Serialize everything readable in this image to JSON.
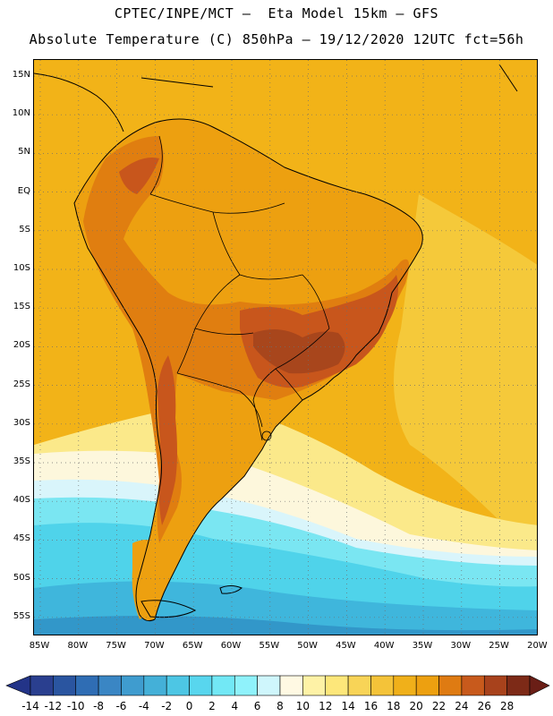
{
  "header": {
    "title_line1": "CPTEC/INPE/MCT –  Eta Model 15km – GFS",
    "title_line2": "Absolute Temperature (C) 850hPa – 19/12/2020 12UTC fct=56h"
  },
  "map": {
    "lat_labels": [
      "15N",
      "10N",
      "5N",
      "EQ",
      "5S",
      "10S",
      "15S",
      "20S",
      "25S",
      "30S",
      "35S",
      "40S",
      "45S",
      "50S",
      "55S"
    ],
    "lon_labels": [
      "85W",
      "80W",
      "75W",
      "70W",
      "65W",
      "60W",
      "55W",
      "50W",
      "45W",
      "40W",
      "35W",
      "30W",
      "25W",
      "20W"
    ],
    "palette": {
      "ocean_warm": "#f2b318",
      "ocean_mid": "#f5c93a",
      "cool_yellow": "#fbe98a",
      "pale": "#fdf7dc",
      "very_pale_cyan": "#d9f5fb",
      "cyan_light": "#7ae6f2",
      "cyan": "#4fd3ea",
      "blue_light": "#3fb6dc",
      "blue_mid": "#3297c9",
      "land_orange": "#eda010",
      "land_warm": "#e07e10",
      "land_hot": "#c8561c",
      "land_hottest": "#a8461c",
      "coast": "#000000"
    }
  },
  "colorbar": {
    "labels": [
      "-14",
      "-12",
      "-10",
      "-8",
      "-6",
      "-4",
      "-2",
      "0",
      "2",
      "4",
      "6",
      "8",
      "10",
      "12",
      "14",
      "16",
      "18",
      "20",
      "22",
      "24",
      "26",
      "28"
    ],
    "colors": [
      "#2a3f8f",
      "#2a55a0",
      "#2f6db4",
      "#3a86c4",
      "#3f9ccf",
      "#44b0d8",
      "#4dc6e4",
      "#58d6ee",
      "#72e8f5",
      "#8ff2fb",
      "#cff6fc",
      "#fff9e3",
      "#fef2a6",
      "#fde77a",
      "#f8d457",
      "#f4c339",
      "#f0b01a",
      "#eda010",
      "#df7b12",
      "#c85a1c",
      "#a8421c",
      "#7d2a17"
    ],
    "low_color": "#233488",
    "high_color": "#6a1e16"
  }
}
